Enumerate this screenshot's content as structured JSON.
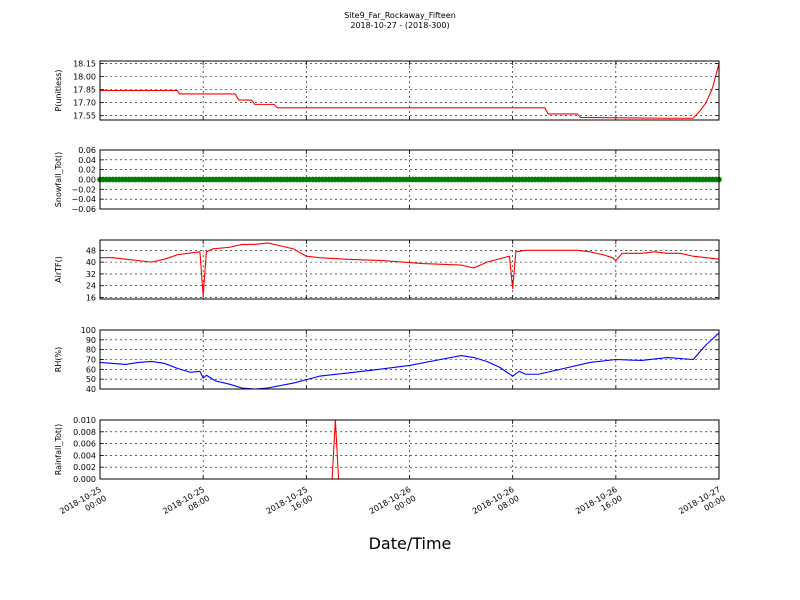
{
  "title_line1": "Site9_Far_Rockaway_Fifteen",
  "title_line2": "2018-10-27 - (2018-300)",
  "xlabel": "Date/Time",
  "x_ticks": [
    {
      "value": "2018-10-25 00:00",
      "line1": "2018-10-25",
      "line2": "00:00"
    },
    {
      "value": "2018-10-25 08:00",
      "line1": "2018-10-25",
      "line2": "08:00"
    },
    {
      "value": "2018-10-25 16:00",
      "line1": "2018-10-25",
      "line2": "16:00"
    },
    {
      "value": "2018-10-26 00:00",
      "line1": "2018-10-26",
      "line2": "00:00"
    },
    {
      "value": "2018-10-26 08:00",
      "line1": "2018-10-26",
      "line2": "08:00"
    },
    {
      "value": "2018-10-26 16:00",
      "line1": "2018-10-26",
      "line2": "16:00"
    },
    {
      "value": "2018-10-27 00:00",
      "line1": "2018-10-27",
      "line2": "00:00"
    }
  ],
  "colors": {
    "pressure": "#ff0000",
    "snowfall": "#008000",
    "airtemp": "#ff0000",
    "rh": "#0000ff",
    "rainfall": "#ff0000"
  },
  "chart_data": [
    {
      "type": "line",
      "ylabel": "P(unitless)",
      "ylim": [
        17.5,
        18.18
      ],
      "yticks": [
        "17.55",
        "17.70",
        "17.85",
        "18.00",
        "18.15"
      ],
      "grid": true,
      "xlim": [
        "2018-10-25 00:00",
        "2018-10-27 00:00"
      ],
      "x": [
        "2018-10-25 00:00",
        "2018-10-25 06:00",
        "2018-10-25 06:10",
        "2018-10-25 10:30",
        "2018-10-25 10:45",
        "2018-10-25 11:45",
        "2018-10-25 12:00",
        "2018-10-25 13:30",
        "2018-10-25 13:45",
        "2018-10-25 20:00",
        "2018-10-26 02:00",
        "2018-10-26 06:00",
        "2018-10-26 10:30",
        "2018-10-26 10:45",
        "2018-10-26 13:00",
        "2018-10-26 13:15",
        "2018-10-26 20:00",
        "2018-10-26 22:00",
        "2018-10-26 22:30",
        "2018-10-26 23:00",
        "2018-10-26 23:30",
        "2018-10-27 00:00"
      ],
      "series": [
        {
          "values": [
            17.84,
            17.84,
            17.8,
            17.8,
            17.73,
            17.73,
            17.68,
            17.68,
            17.64,
            17.64,
            17.64,
            17.64,
            17.64,
            17.57,
            17.57,
            17.53,
            17.52,
            17.52,
            17.6,
            17.7,
            17.87,
            18.15
          ]
        }
      ]
    },
    {
      "type": "scatter",
      "ylabel": "Snowfall_Tot()",
      "ylim": [
        -0.06,
        0.06
      ],
      "yticks": [
        "−0.06",
        "−0.04",
        "−0.02",
        "0.00",
        "0.02",
        "0.04",
        "0.06"
      ],
      "grid": true,
      "xlim": [
        "2018-10-25 00:00",
        "2018-10-27 00:00"
      ],
      "x": [
        "2018-10-25 00:00",
        "2018-10-27 00:00"
      ],
      "sampling": "every 15 minutes",
      "series": [
        {
          "values": [
            0,
            0
          ]
        }
      ]
    },
    {
      "type": "line",
      "ylabel": "AirTF()",
      "ylim": [
        15,
        55
      ],
      "yticks": [
        "16",
        "24",
        "32",
        "40",
        "48"
      ],
      "grid": true,
      "xlim": [
        "2018-10-25 00:00",
        "2018-10-27 00:00"
      ],
      "x": [
        "2018-10-25 00:00",
        "2018-10-25 01:00",
        "2018-10-25 02:00",
        "2018-10-25 04:00",
        "2018-10-25 05:00",
        "2018-10-25 06:00",
        "2018-10-25 07:45",
        "2018-10-25 08:00",
        "2018-10-25 08:15",
        "2018-10-25 08:45",
        "2018-10-25 10:00",
        "2018-10-25 11:00",
        "2018-10-25 12:00",
        "2018-10-25 13:00",
        "2018-10-25 14:00",
        "2018-10-25 15:00",
        "2018-10-25 16:00",
        "2018-10-25 17:00",
        "2018-10-25 19:00",
        "2018-10-25 22:00",
        "2018-10-26 01:00",
        "2018-10-26 04:00",
        "2018-10-26 05:00",
        "2018-10-26 06:00",
        "2018-10-26 07:45",
        "2018-10-26 08:00",
        "2018-10-26 08:15",
        "2018-10-26 09:00",
        "2018-10-26 10:00",
        "2018-10-26 12:00",
        "2018-10-26 13:00",
        "2018-10-26 14:00",
        "2018-10-26 15:00",
        "2018-10-26 15:45",
        "2018-10-26 16:00",
        "2018-10-26 16:30",
        "2018-10-26 18:00",
        "2018-10-26 19:00",
        "2018-10-26 20:00",
        "2018-10-26 21:00",
        "2018-10-26 22:00",
        "2018-10-27 00:00"
      ],
      "series": [
        {
          "values": [
            43,
            43,
            42,
            40,
            42,
            45,
            47,
            17,
            47,
            49,
            50,
            52,
            52,
            53,
            51,
            49,
            44,
            43,
            42,
            41,
            39,
            38,
            36,
            40,
            44,
            22,
            47,
            48,
            48,
            48,
            48,
            47,
            45,
            43,
            41,
            46,
            46,
            47,
            46,
            46,
            44,
            42
          ]
        }
      ]
    },
    {
      "type": "line",
      "ylabel": "RH(%)",
      "ylim": [
        40,
        100
      ],
      "yticks": [
        "40",
        "50",
        "60",
        "70",
        "80",
        "90",
        "100"
      ],
      "grid": true,
      "xlim": [
        "2018-10-25 00:00",
        "2018-10-27 00:00"
      ],
      "x": [
        "2018-10-25 00:00",
        "2018-10-25 01:00",
        "2018-10-25 02:00",
        "2018-10-25 03:00",
        "2018-10-25 04:00",
        "2018-10-25 05:00",
        "2018-10-25 06:00",
        "2018-10-25 07:00",
        "2018-10-25 07:45",
        "2018-10-25 08:00",
        "2018-10-25 08:15",
        "2018-10-25 09:00",
        "2018-10-25 10:00",
        "2018-10-25 11:00",
        "2018-10-25 12:00",
        "2018-10-25 13:00",
        "2018-10-25 15:00",
        "2018-10-25 17:00",
        "2018-10-25 19:00",
        "2018-10-25 21:00",
        "2018-10-26 00:00",
        "2018-10-26 02:00",
        "2018-10-26 04:00",
        "2018-10-26 05:00",
        "2018-10-26 06:00",
        "2018-10-26 07:00",
        "2018-10-26 08:00",
        "2018-10-26 08:30",
        "2018-10-26 09:00",
        "2018-10-26 10:00",
        "2018-10-26 12:00",
        "2018-10-26 14:00",
        "2018-10-26 16:00",
        "2018-10-26 18:00",
        "2018-10-26 20:00",
        "2018-10-26 22:00",
        "2018-10-26 23:00",
        "2018-10-27 00:00"
      ],
      "series": [
        {
          "values": [
            67,
            66,
            65,
            67,
            68,
            66,
            61,
            57,
            58,
            51,
            54,
            48,
            45,
            41,
            40,
            41,
            46,
            53,
            56,
            59,
            64,
            69,
            74,
            72,
            68,
            62,
            53,
            58,
            55,
            55,
            61,
            67,
            70,
            69,
            72,
            70,
            85,
            97
          ]
        }
      ]
    },
    {
      "type": "line",
      "ylabel": "Rainfall_Tot()",
      "ylim": [
        0,
        0.01
      ],
      "yticks": [
        "0.000",
        "0.002",
        "0.004",
        "0.006",
        "0.008",
        "0.010"
      ],
      "grid": true,
      "xlim": [
        "2018-10-25 00:00",
        "2018-10-27 00:00"
      ],
      "x": [
        "2018-10-25 00:00",
        "2018-10-25 18:00",
        "2018-10-25 18:15",
        "2018-10-25 18:30",
        "2018-10-27 00:00"
      ],
      "series": [
        {
          "values": [
            0,
            0,
            0.01,
            0,
            0
          ]
        }
      ]
    }
  ]
}
